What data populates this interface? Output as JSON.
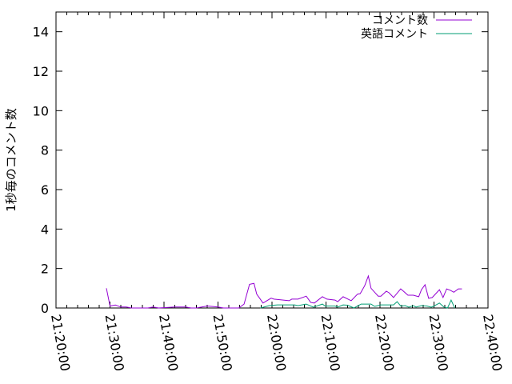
{
  "chart_data": {
    "type": "line",
    "title": "",
    "xlabel": "",
    "ylabel": "1秒毎のコメント数",
    "xlim": [
      "21:20:00",
      "22:40:00"
    ],
    "ylim": [
      0,
      15
    ],
    "x_ticks": [
      "21:20:00",
      "21:30:00",
      "21:40:00",
      "21:50:00",
      "22:00:00",
      "22:10:00",
      "22:20:00",
      "22:30:00",
      "22:40:00"
    ],
    "y_ticks": [
      "0",
      "2",
      "4",
      "6",
      "8",
      "10",
      "12",
      "14"
    ],
    "y_tick_values": [
      0,
      2,
      4,
      6,
      8,
      10,
      12,
      14
    ],
    "grid": false,
    "legend_position": "top-right",
    "series": [
      {
        "name": "コメント数",
        "color": "#9400d3",
        "points": [
          [
            "21:29:20",
            1.0
          ],
          [
            "21:30:00",
            0.1
          ],
          [
            "21:31:00",
            0.15
          ],
          [
            "21:32:00",
            0.05
          ],
          [
            "21:33:00",
            0.05
          ],
          [
            "21:34:00",
            0
          ],
          [
            "21:37:00",
            0
          ],
          [
            "21:38:00",
            0.05
          ],
          [
            "21:39:00",
            0
          ],
          [
            "21:42:00",
            0.05
          ],
          [
            "21:44:00",
            0.05
          ],
          [
            "21:45:00",
            0
          ],
          [
            "21:46:00",
            0
          ],
          [
            "21:47:00",
            0.05
          ],
          [
            "21:48:00",
            0.1
          ],
          [
            "21:50:00",
            0.05
          ],
          [
            "21:51:00",
            0
          ],
          [
            "21:53:50",
            0
          ],
          [
            "21:54:50",
            0.2
          ],
          [
            "21:55:50",
            1.2
          ],
          [
            "21:56:40",
            1.25
          ],
          [
            "21:57:10",
            0.7
          ],
          [
            "21:58:20",
            0.25
          ],
          [
            "21:59:50",
            0.5
          ],
          [
            "22:00:20",
            0.45
          ],
          [
            "22:03:10",
            0.37
          ],
          [
            "22:03:40",
            0.45
          ],
          [
            "22:04:50",
            0.45
          ],
          [
            "22:06:20",
            0.6
          ],
          [
            "22:07:10",
            0.28
          ],
          [
            "22:07:50",
            0.25
          ],
          [
            "22:09:20",
            0.57
          ],
          [
            "22:10:10",
            0.45
          ],
          [
            "22:11:40",
            0.4
          ],
          [
            "22:12:10",
            0.32
          ],
          [
            "22:13:10",
            0.57
          ],
          [
            "22:14:40",
            0.37
          ],
          [
            "22:15:50",
            0.7
          ],
          [
            "22:16:20",
            0.73
          ],
          [
            "22:17:10",
            1.13
          ],
          [
            "22:17:50",
            1.62
          ],
          [
            "22:18:20",
            1.0
          ],
          [
            "22:19:00",
            0.8
          ],
          [
            "22:19:40",
            0.6
          ],
          [
            "22:20:10",
            0.6
          ],
          [
            "22:21:10",
            0.85
          ],
          [
            "22:21:40",
            0.77
          ],
          [
            "22:22:30",
            0.53
          ],
          [
            "22:23:50",
            0.97
          ],
          [
            "22:24:20",
            0.85
          ],
          [
            "22:25:10",
            0.65
          ],
          [
            "22:26:10",
            0.65
          ],
          [
            "22:27:10",
            0.57
          ],
          [
            "22:27:40",
            0.93
          ],
          [
            "22:28:20",
            1.18
          ],
          [
            "22:29:00",
            0.49
          ],
          [
            "22:29:40",
            0.53
          ],
          [
            "22:31:00",
            0.93
          ],
          [
            "22:31:40",
            0.53
          ],
          [
            "22:32:20",
            0.97
          ],
          [
            "22:33:00",
            0.9
          ],
          [
            "22:33:40",
            0.8
          ],
          [
            "22:34:30",
            0.97
          ],
          [
            "22:35:10",
            0.97
          ]
        ]
      },
      {
        "name": "英語コメント",
        "color": "#009e73",
        "points": [
          [
            "21:57:50",
            0
          ],
          [
            "21:59:30",
            0.12
          ],
          [
            "22:01:00",
            0.16
          ],
          [
            "22:04:10",
            0.16
          ],
          [
            "22:04:50",
            0.12
          ],
          [
            "22:06:20",
            0.2
          ],
          [
            "22:07:40",
            0.04
          ],
          [
            "22:09:20",
            0.2
          ],
          [
            "22:09:50",
            0.1
          ],
          [
            "22:11:40",
            0.1
          ],
          [
            "22:12:10",
            0.05
          ],
          [
            "22:13:10",
            0.16
          ],
          [
            "22:14:00",
            0.14
          ],
          [
            "22:15:10",
            0
          ],
          [
            "22:16:30",
            0.2
          ],
          [
            "22:18:20",
            0.2
          ],
          [
            "22:19:00",
            0.08
          ],
          [
            "22:20:10",
            0.16
          ],
          [
            "22:22:30",
            0.16
          ],
          [
            "22:23:10",
            0.32
          ],
          [
            "22:23:50",
            0.1
          ],
          [
            "22:24:40",
            0.12
          ],
          [
            "22:25:20",
            0.04
          ],
          [
            "22:26:10",
            0.12
          ],
          [
            "22:26:40",
            0.05
          ],
          [
            "22:27:40",
            0.12
          ],
          [
            "22:28:40",
            0.1
          ],
          [
            "22:29:30",
            0.04
          ],
          [
            "22:30:00",
            0.1
          ],
          [
            "22:31:00",
            0.25
          ],
          [
            "22:31:50",
            0.05
          ],
          [
            "22:32:30",
            0
          ],
          [
            "22:33:10",
            0.4
          ],
          [
            "22:33:50",
            0
          ]
        ]
      }
    ]
  }
}
